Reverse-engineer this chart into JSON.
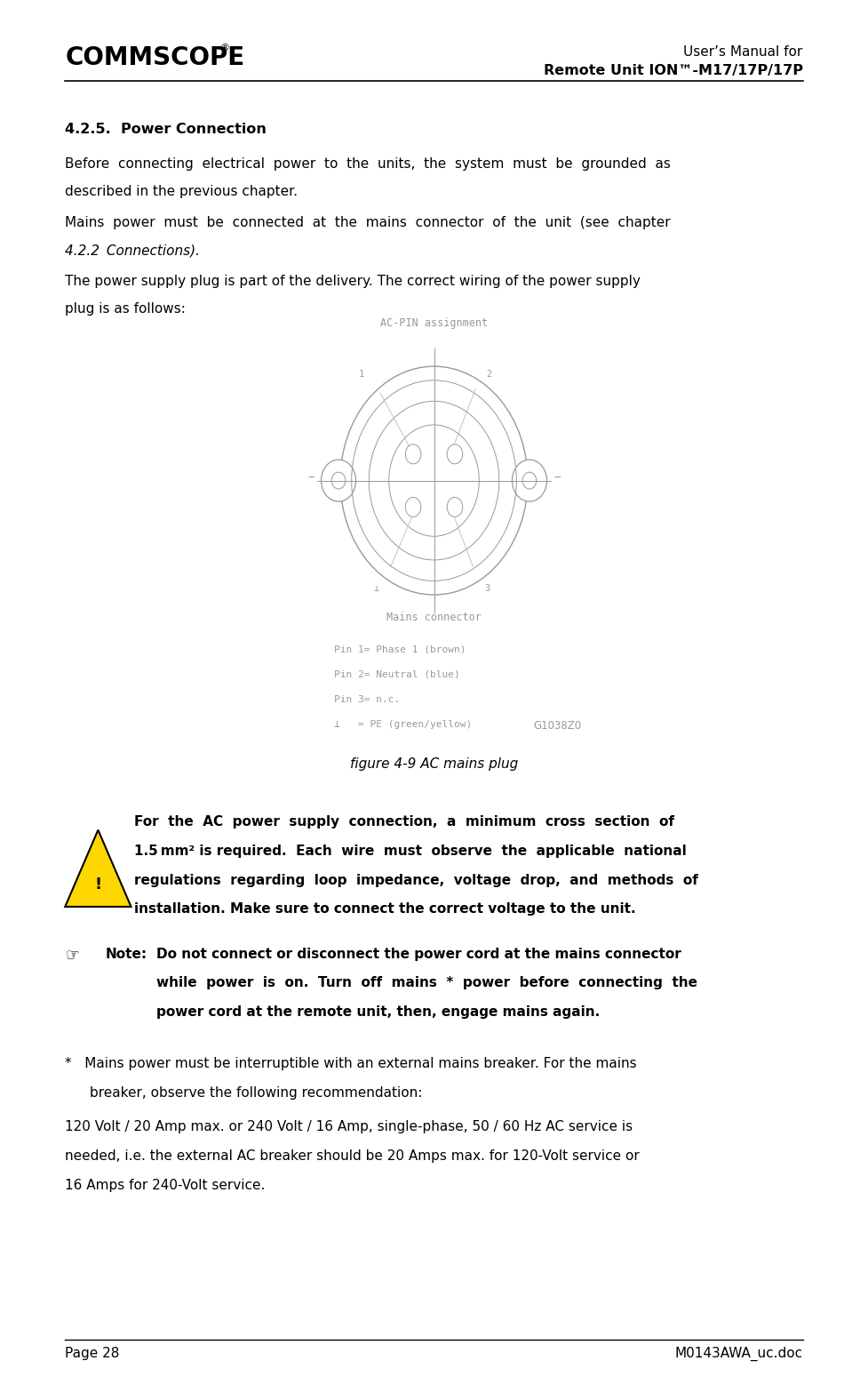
{
  "page_width": 9.77,
  "page_height": 15.67,
  "bg_color": "#ffffff",
  "header_right_line1": "User’s Manual for",
  "header_right_line2": "Remote Unit ION™-M17/17P/17P",
  "footer_left": "Page 28",
  "footer_right": "M0143AWA_uc.doc",
  "text_color": "#000000",
  "gray_color": "#999999",
  "lgray_color": "#bbbbbb",
  "body_fontsize": 11.0,
  "dpi": 100,
  "ml": 0.075,
  "mr": 0.925
}
